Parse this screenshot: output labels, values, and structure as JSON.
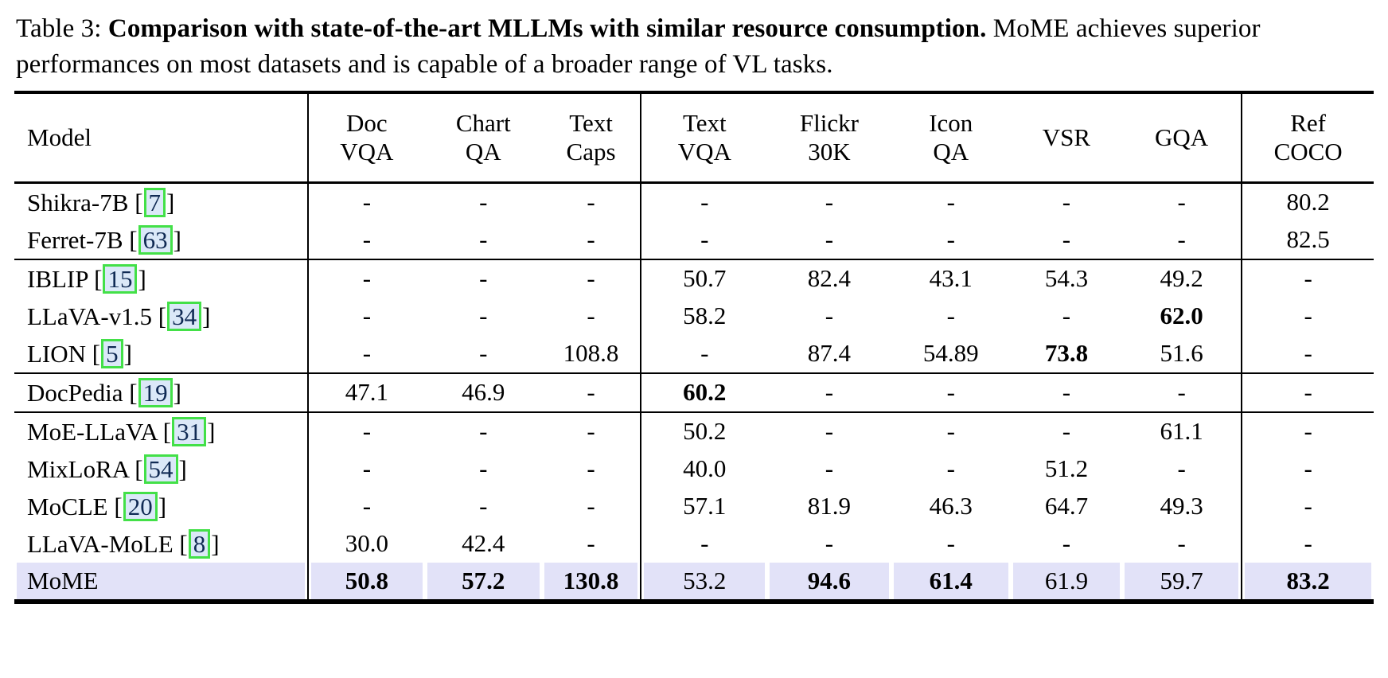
{
  "caption": {
    "prefix": "Table 3: ",
    "bold": "Comparison with state-of-the-art MLLMs with similar resource consumption.",
    "rest": " MoME achieves superior performances on most datasets and is capable of a broader range of VL tasks."
  },
  "chart_data": {
    "type": "table",
    "title": "Comparison with state-of-the-art MLLMs with similar resource consumption",
    "columns": [
      "Model",
      "Doc VQA",
      "Chart QA",
      "Text Caps",
      "Text VQA",
      "Flickr 30K",
      "Icon QA",
      "VSR",
      "GQA",
      "Ref COCO"
    ],
    "rows": [
      [
        "Shikra-7B [7]",
        "-",
        "-",
        "-",
        "-",
        "-",
        "-",
        "-",
        "-",
        "80.2"
      ],
      [
        "Ferret-7B [63]",
        "-",
        "-",
        "-",
        "-",
        "-",
        "-",
        "-",
        "-",
        "82.5"
      ],
      [
        "IBLIP [15]",
        "-",
        "-",
        "-",
        "50.7",
        "82.4",
        "43.1",
        "54.3",
        "49.2",
        "-"
      ],
      [
        "LLaVA-v1.5 [34]",
        "-",
        "-",
        "-",
        "58.2",
        "-",
        "-",
        "-",
        "62.0",
        "-"
      ],
      [
        "LION [5]",
        "-",
        "-",
        "108.8",
        "-",
        "87.4",
        "54.89",
        "73.8",
        "51.6",
        "-"
      ],
      [
        "DocPedia [19]",
        "47.1",
        "46.9",
        "-",
        "60.2",
        "-",
        "-",
        "-",
        "-",
        "-"
      ],
      [
        "MoE-LLaVA [31]",
        "-",
        "-",
        "-",
        "50.2",
        "-",
        "-",
        "-",
        "61.1",
        "-"
      ],
      [
        "MixLoRA [54]",
        "-",
        "-",
        "-",
        "40.0",
        "-",
        "-",
        "51.2",
        "-",
        "-"
      ],
      [
        "MoCLE [20]",
        "-",
        "-",
        "-",
        "57.1",
        "81.9",
        "46.3",
        "64.7",
        "49.3",
        "-"
      ],
      [
        "LLaVA-MoLE [8]",
        "30.0",
        "42.4",
        "-",
        "-",
        "-",
        "-",
        "-",
        "-",
        "-"
      ],
      [
        "MoME",
        "50.8",
        "57.2",
        "130.8",
        "53.2",
        "94.6",
        "61.4",
        "61.9",
        "59.7",
        "83.2"
      ]
    ]
  },
  "table": {
    "columns": [
      {
        "id": "model",
        "lines": [
          "Model"
        ],
        "width": "21.6%"
      },
      {
        "id": "docvqa",
        "lines": [
          "Doc",
          "VQA"
        ],
        "width": "8.6%"
      },
      {
        "id": "chartqa",
        "lines": [
          "Chart",
          "QA"
        ],
        "width": "8.6%"
      },
      {
        "id": "textcaps",
        "lines": [
          "Text",
          "Caps"
        ],
        "width": "7.3%"
      },
      {
        "id": "textvqa",
        "lines": [
          "Text",
          "VQA"
        ],
        "width": "9.3%"
      },
      {
        "id": "flickr30k",
        "lines": [
          "Flickr",
          "30K"
        ],
        "width": "9.1%"
      },
      {
        "id": "iconqa",
        "lines": [
          "Icon",
          "QA"
        ],
        "width": "8.8%"
      },
      {
        "id": "vsr",
        "lines": [
          "VSR"
        ],
        "width": "8.2%"
      },
      {
        "id": "gqa",
        "lines": [
          "GQA"
        ],
        "width": "8.8%"
      },
      {
        "id": "refcoco",
        "lines": [
          "Ref",
          "COCO"
        ],
        "width": "9.7%"
      }
    ],
    "vr_after_cell_index": [
      2,
      7
    ],
    "groups": [
      {
        "rows": [
          {
            "model": "Shikra-7B",
            "cite": "7",
            "highlight": false,
            "cells": [
              {
                "t": "-"
              },
              {
                "t": "-"
              },
              {
                "t": "-"
              },
              {
                "t": "-"
              },
              {
                "t": "-"
              },
              {
                "t": "-"
              },
              {
                "t": "-"
              },
              {
                "t": "-"
              },
              {
                "t": "80.2"
              }
            ]
          },
          {
            "model": "Ferret-7B",
            "cite": "63",
            "highlight": false,
            "cells": [
              {
                "t": "-"
              },
              {
                "t": "-"
              },
              {
                "t": "-"
              },
              {
                "t": "-"
              },
              {
                "t": "-"
              },
              {
                "t": "-"
              },
              {
                "t": "-"
              },
              {
                "t": "-"
              },
              {
                "t": "82.5"
              }
            ]
          }
        ]
      },
      {
        "rows": [
          {
            "model": "IBLIP",
            "cite": "15",
            "highlight": false,
            "cells": [
              {
                "t": "-"
              },
              {
                "t": "-"
              },
              {
                "t": "-"
              },
              {
                "t": "50.7"
              },
              {
                "t": "82.4"
              },
              {
                "t": "43.1"
              },
              {
                "t": "54.3"
              },
              {
                "t": "49.2"
              },
              {
                "t": "-"
              }
            ]
          },
          {
            "model": "LLaVA-v1.5",
            "cite": "34",
            "highlight": false,
            "cells": [
              {
                "t": "-"
              },
              {
                "t": "-"
              },
              {
                "t": "-"
              },
              {
                "t": "58.2"
              },
              {
                "t": "-"
              },
              {
                "t": "-"
              },
              {
                "t": "-"
              },
              {
                "t": "62.0",
                "b": true
              },
              {
                "t": "-"
              }
            ]
          },
          {
            "model": "LION",
            "cite": "5",
            "highlight": false,
            "cells": [
              {
                "t": "-"
              },
              {
                "t": "-"
              },
              {
                "t": "108.8"
              },
              {
                "t": "-"
              },
              {
                "t": "87.4"
              },
              {
                "t": "54.89"
              },
              {
                "t": "73.8",
                "b": true
              },
              {
                "t": "51.6"
              },
              {
                "t": "-"
              }
            ]
          }
        ]
      },
      {
        "rows": [
          {
            "model": "DocPedia",
            "cite": "19",
            "highlight": false,
            "cells": [
              {
                "t": "47.1"
              },
              {
                "t": "46.9"
              },
              {
                "t": "-"
              },
              {
                "t": "60.2",
                "b": true
              },
              {
                "t": "-"
              },
              {
                "t": "-"
              },
              {
                "t": "-"
              },
              {
                "t": "-"
              },
              {
                "t": "-"
              }
            ]
          }
        ]
      },
      {
        "rows": [
          {
            "model": "MoE-LLaVA",
            "cite": "31",
            "highlight": false,
            "cells": [
              {
                "t": "-"
              },
              {
                "t": "-"
              },
              {
                "t": "-"
              },
              {
                "t": "50.2"
              },
              {
                "t": "-"
              },
              {
                "t": "-"
              },
              {
                "t": "-"
              },
              {
                "t": "61.1"
              },
              {
                "t": "-"
              }
            ]
          },
          {
            "model": "MixLoRA",
            "cite": "54",
            "highlight": false,
            "cells": [
              {
                "t": "-"
              },
              {
                "t": "-"
              },
              {
                "t": "-"
              },
              {
                "t": "40.0"
              },
              {
                "t": "-"
              },
              {
                "t": "-"
              },
              {
                "t": "51.2"
              },
              {
                "t": "-"
              },
              {
                "t": "-"
              }
            ]
          },
          {
            "model": "MoCLE",
            "cite": "20",
            "highlight": false,
            "cells": [
              {
                "t": "-"
              },
              {
                "t": "-"
              },
              {
                "t": "-"
              },
              {
                "t": "57.1"
              },
              {
                "t": "81.9"
              },
              {
                "t": "46.3"
              },
              {
                "t": "64.7"
              },
              {
                "t": "49.3"
              },
              {
                "t": "-"
              }
            ]
          },
          {
            "model": "LLaVA-MoLE",
            "cite": "8",
            "highlight": false,
            "cells": [
              {
                "t": "30.0"
              },
              {
                "t": "42.4"
              },
              {
                "t": "-"
              },
              {
                "t": "-"
              },
              {
                "t": "-"
              },
              {
                "t": "-"
              },
              {
                "t": "-"
              },
              {
                "t": "-"
              },
              {
                "t": "-"
              }
            ]
          },
          {
            "model": "MoME",
            "cite": null,
            "highlight": true,
            "cells": [
              {
                "t": "50.8",
                "b": true
              },
              {
                "t": "57.2",
                "b": true
              },
              {
                "t": "130.8",
                "b": true
              },
              {
                "t": "53.2"
              },
              {
                "t": "94.6",
                "b": true
              },
              {
                "t": "61.4",
                "b": true
              },
              {
                "t": "61.9"
              },
              {
                "t": "59.7"
              },
              {
                "t": "83.2",
                "b": true
              }
            ]
          }
        ]
      }
    ],
    "colors": {
      "highlight_row_bg": "#e2e2f8",
      "cite_box_border": "#43e048",
      "cite_box_bg": "#dbe8f8",
      "cite_text": "#102a54",
      "rule": "#000000"
    }
  }
}
